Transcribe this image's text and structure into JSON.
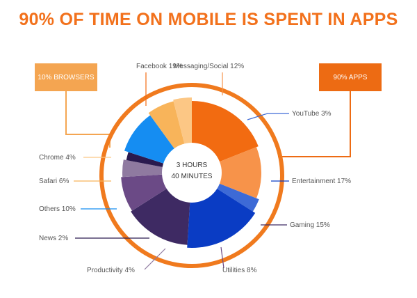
{
  "title": "90% OF TIME ON MOBILE IS SPENT IN APPS",
  "callouts": {
    "browsers": "10% BROWSERS",
    "apps": "90% APPS"
  },
  "center": {
    "line1": "3 HOURS",
    "line2": "40 MINUTES"
  },
  "colors": {
    "title": "#f2711c",
    "ring": "#f07a1e",
    "browsers_box": "#f4a551",
    "apps_box": "#ed6b13"
  },
  "chart_data": {
    "type": "pie",
    "title": "90% OF TIME ON MOBILE IS SPENT IN APPS",
    "categories": [
      "Facebook",
      "Messaging/Social",
      "YouTube",
      "Entertainment",
      "Gaming",
      "Utilities",
      "Productivity",
      "News",
      "Others",
      "Safari",
      "Chrome"
    ],
    "values": [
      19,
      12,
      3,
      17,
      15,
      8,
      4,
      2,
      10,
      6,
      4
    ],
    "labels": [
      "Facebook 19%",
      "Messaging/Social 12%",
      "YouTube 3%",
      "Entertainment 17%",
      "Gaming 15%",
      "Utilities 8%",
      "Productivity 4%",
      "News 2%",
      "Others 10%",
      "Safari 6%",
      "Chrome 4%"
    ],
    "colors": [
      "#f26b11",
      "#f7934a",
      "#3d6ad6",
      "#0a3cc4",
      "#3e2a63",
      "#6b4a86",
      "#8f7aa0",
      "#2a1a4f",
      "#158df2",
      "#f8b45a",
      "#fcc785"
    ],
    "groups": [
      {
        "label": "10% BROWSERS",
        "members": [
          "Chrome",
          "Safari"
        ]
      },
      {
        "label": "90% APPS",
        "members": [
          "Facebook",
          "Messaging/Social",
          "YouTube",
          "Entertainment",
          "Gaming",
          "Utilities",
          "Productivity",
          "News",
          "Others"
        ]
      }
    ]
  }
}
